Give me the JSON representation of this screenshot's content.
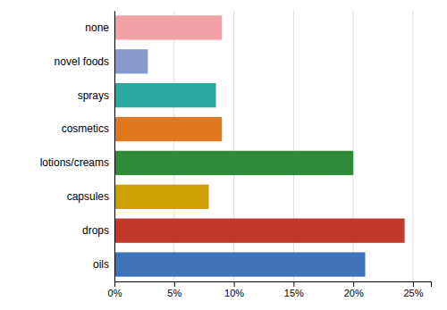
{
  "chart_data": {
    "type": "bar",
    "orientation": "horizontal",
    "categories": [
      "oils",
      "drops",
      "capsules",
      "lotions/creams",
      "cosmetics",
      "sprays",
      "novel foods",
      "none"
    ],
    "values": [
      0.21,
      0.243,
      0.079,
      0.2,
      0.09,
      0.085,
      0.028,
      0.09
    ],
    "colors": [
      "#3F73B8",
      "#C0392B",
      "#CCA000",
      "#2E8B3A",
      "#E07820",
      "#2BA8A0",
      "#8899CC",
      "#F4A0A8"
    ],
    "xlim": [
      0,
      0.265
    ],
    "xticks": [
      {
        "value": 0,
        "label": "0%"
      },
      {
        "value": 0.05,
        "label": "5%"
      },
      {
        "value": 0.1,
        "label": "10%"
      },
      {
        "value": 0.15,
        "label": "15%"
      },
      {
        "value": 0.2,
        "label": "20%"
      },
      {
        "value": 0.25,
        "label": "25%"
      }
    ],
    "grid": true
  }
}
